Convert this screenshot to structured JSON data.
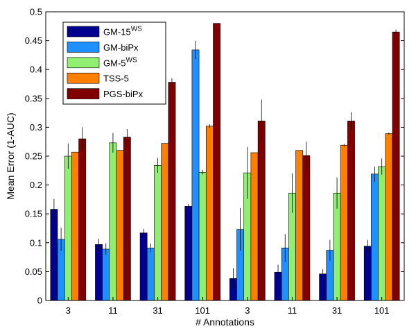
{
  "chart_data": {
    "type": "bar",
    "title": "",
    "xlabel": "# Annotations",
    "ylabel": "Mean Error (1-AUC)",
    "ylim": [
      0,
      0.5
    ],
    "yticks": [
      "0",
      "0.05",
      "0.1",
      "0.15",
      "0.2",
      "0.25",
      "0.3",
      "0.35",
      "0.4",
      "0.45",
      "0.5"
    ],
    "categories": [
      "3",
      "11",
      "31",
      "101",
      "3",
      "11",
      "31",
      "101"
    ],
    "grid": false,
    "legend_position": "top-left",
    "series": [
      {
        "name": "GM-15",
        "name_sup": "WS",
        "color": "#00008f",
        "values": [
          0.158,
          0.097,
          0.117,
          0.163,
          0.038,
          0.049,
          0.046,
          0.094
        ],
        "errors": [
          0.018,
          0.01,
          0.007,
          0.004,
          0.018,
          0.013,
          0.008,
          0.011
        ]
      },
      {
        "name": "GM-biPx",
        "name_sup": "",
        "color": "#1e90ff",
        "values": [
          0.106,
          0.089,
          0.091,
          0.434,
          0.123,
          0.091,
          0.087,
          0.219
        ],
        "errors": [
          0.02,
          0.01,
          0.008,
          0.016,
          0.037,
          0.024,
          0.018,
          0.013
        ]
      },
      {
        "name": "GM-5",
        "name_sup": "WS",
        "color": "#90ee70",
        "values": [
          0.25,
          0.273,
          0.234,
          0.222,
          0.221,
          0.186,
          0.186,
          0.232
        ],
        "errors": [
          0.022,
          0.017,
          0.013,
          0.004,
          0.045,
          0.034,
          0.027,
          0.014
        ]
      },
      {
        "name": "TSS-5",
        "name_sup": "",
        "color": "#ff8000",
        "values": [
          0.257,
          0.26,
          0.272,
          0.302,
          0.256,
          0.26,
          0.269,
          0.289
        ],
        "errors": [
          0.0,
          0.0,
          0.0,
          0.003,
          0.0,
          0.0,
          0.002,
          0.002
        ]
      },
      {
        "name": "PGS-biPx",
        "name_sup": "",
        "color": "#800000",
        "values": [
          0.28,
          0.283,
          0.378,
          0.48,
          0.311,
          0.251,
          0.311,
          0.465
        ],
        "errors": [
          0.02,
          0.014,
          0.007,
          0.0,
          0.037,
          0.024,
          0.015,
          0.004
        ]
      }
    ]
  }
}
